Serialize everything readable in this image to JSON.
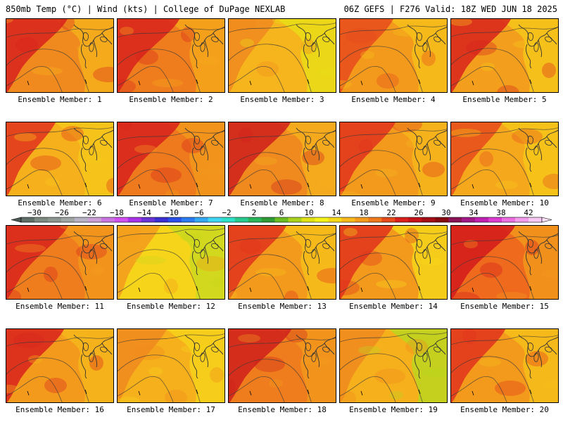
{
  "header": {
    "left_title": "850mb Temp (°C) | Wind (kts) | College of DuPage NEXLAB",
    "right_title": "06Z GEFS | F276 Valid: 18Z WED JUN 18 2025"
  },
  "panel_label_prefix": "Ensemble Member:",
  "members": [
    {
      "label": "Ensemble Member: 1",
      "warmth": 0.78,
      "base": "#f08a1e",
      "hot": "#d8211c",
      "cool": "#f6b21c"
    },
    {
      "label": "Ensemble Member: 2",
      "warmth": 0.8,
      "base": "#ef7d1d",
      "hot": "#d8211c",
      "cool": "#f5a91c"
    },
    {
      "label": "Ensemble Member: 3",
      "warmth": 0.45,
      "base": "#f6b51c",
      "hot": "#f08a1e",
      "cool": "#e9df16"
    },
    {
      "label": "Ensemble Member: 4",
      "warmth": 0.6,
      "base": "#f39a1d",
      "hot": "#e64b1c",
      "cool": "#f6c01a"
    },
    {
      "label": "Ensemble Member: 5",
      "warmth": 0.75,
      "base": "#f39f1d",
      "hot": "#d8211c",
      "cool": "#f6c81a"
    },
    {
      "label": "Ensemble Member: 6",
      "warmth": 0.5,
      "base": "#f6b01c",
      "hot": "#e0321c",
      "cool": "#f6c81a"
    },
    {
      "label": "Ensemble Member: 7",
      "warmth": 0.82,
      "base": "#ef7a1d",
      "hot": "#d8211c",
      "cool": "#f39a1d"
    },
    {
      "label": "Ensemble Member: 8",
      "warmth": 0.8,
      "base": "#f08a1e",
      "hot": "#cf1f1c",
      "cool": "#f6b01c"
    },
    {
      "label": "Ensemble Member: 9",
      "warmth": 0.65,
      "base": "#f39a1d",
      "hot": "#e0321c",
      "cool": "#f6b81c"
    },
    {
      "label": "Ensemble Member: 10",
      "warmth": 0.55,
      "base": "#f6a81c",
      "hot": "#e64b1c",
      "cool": "#f6c81a"
    },
    {
      "label": "Ensemble Member: 11",
      "warmth": 0.8,
      "base": "#ef7d1d",
      "hot": "#d8211c",
      "cool": "#f39a1d"
    },
    {
      "label": "Ensemble Member: 12",
      "warmth": 0.35,
      "base": "#f6d41a",
      "hot": "#f39a1d",
      "cool": "#c9d81e"
    },
    {
      "label": "Ensemble Member: 13",
      "warmth": 0.7,
      "base": "#f39a1d",
      "hot": "#e0321c",
      "cool": "#f6c01a"
    },
    {
      "label": "Ensemble Member: 14",
      "warmth": 0.6,
      "base": "#f39a1d",
      "hot": "#e0321c",
      "cool": "#f6d81a"
    },
    {
      "label": "Ensemble Member: 15",
      "warmth": 0.85,
      "base": "#ef6a1d",
      "hot": "#d3191c",
      "cool": "#f39a1d"
    },
    {
      "label": "Ensemble Member: 16",
      "warmth": 0.7,
      "base": "#f39a1d",
      "hot": "#d8211c",
      "cool": "#f6b81c"
    },
    {
      "label": "Ensemble Member: 17",
      "warmth": 0.5,
      "base": "#f6b01c",
      "hot": "#f08a1e",
      "cool": "#f6d41a"
    },
    {
      "label": "Ensemble Member: 18",
      "warmth": 0.82,
      "base": "#ef7d1d",
      "hot": "#cf1f1c",
      "cool": "#f39a1d"
    },
    {
      "label": "Ensemble Member: 19",
      "warmth": 0.42,
      "base": "#f6b01c",
      "hot": "#f08a1e",
      "cool": "#b8d81e"
    },
    {
      "label": "Ensemble Member: 20",
      "warmth": 0.62,
      "base": "#f39a1d",
      "hot": "#e0321c",
      "cool": "#f6c01a"
    }
  ],
  "colorbar": {
    "tick_labels": [
      "−30",
      "−26",
      "−22",
      "−18",
      "−14",
      "−10",
      "−6",
      "−2",
      "2",
      "6",
      "10",
      "14",
      "18",
      "22",
      "26",
      "30",
      "34",
      "38",
      "42"
    ],
    "colors": [
      "#5f6e66",
      "#7c8a82",
      "#8d9590",
      "#a0a6a3",
      "#b7b2c4",
      "#c99fd6",
      "#c875e2",
      "#d14ff0",
      "#a633e8",
      "#6a33d6",
      "#3a2fd0",
      "#2a4fe8",
      "#2a7cf0",
      "#35a8f2",
      "#3fd6f2",
      "#2fe0c8",
      "#27c98f",
      "#2ab55a",
      "#2f9a36",
      "#6bbb22",
      "#a9d21e",
      "#e0e018",
      "#f4f21a",
      "#f6d81a",
      "#f6b81c",
      "#f39a1d",
      "#ef7a1d",
      "#e64b1c",
      "#d8211c",
      "#c3121a",
      "#a30d16",
      "#860912",
      "#8a1458",
      "#a21a88",
      "#c021b0",
      "#dc3cd0",
      "#ec6ee0",
      "#f39cec",
      "#f8c8f4"
    ]
  }
}
